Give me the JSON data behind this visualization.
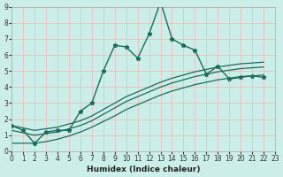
{
  "bg_color": "#cceee8",
  "grid_color": "#e8b8b8",
  "line_color": "#1a6b5a",
  "x_label": "Humidex (Indice chaleur)",
  "xlim": [
    0,
    23
  ],
  "ylim": [
    0,
    9
  ],
  "xticks": [
    0,
    1,
    2,
    3,
    4,
    5,
    6,
    7,
    8,
    9,
    10,
    11,
    12,
    13,
    14,
    15,
    16,
    17,
    18,
    19,
    20,
    21,
    22,
    23
  ],
  "yticks": [
    0,
    1,
    2,
    3,
    4,
    5,
    6,
    7,
    8,
    9
  ],
  "main_x": [
    0,
    1,
    2,
    3,
    4,
    5,
    6,
    7,
    8,
    9,
    10,
    11,
    12,
    13,
    14,
    15,
    16,
    17,
    18,
    19,
    20,
    21,
    22
  ],
  "main_y": [
    1.6,
    1.3,
    0.5,
    1.2,
    1.3,
    1.3,
    2.5,
    3.0,
    5.0,
    6.6,
    6.5,
    5.8,
    7.3,
    9.3,
    7.0,
    6.6,
    6.3,
    4.8,
    5.3,
    4.5,
    4.6,
    4.7,
    4.6
  ],
  "smooth1_x": [
    0,
    1,
    2,
    3,
    4,
    5,
    6,
    7,
    8,
    9,
    10,
    11,
    12,
    13,
    14,
    15,
    16,
    17,
    18,
    19,
    20,
    21,
    22
  ],
  "smooth1_y": [
    1.6,
    1.45,
    1.3,
    1.4,
    1.5,
    1.7,
    1.9,
    2.2,
    2.6,
    3.0,
    3.4,
    3.7,
    4.0,
    4.3,
    4.55,
    4.75,
    4.95,
    5.1,
    5.25,
    5.35,
    5.45,
    5.5,
    5.55
  ],
  "smooth2_x": [
    0,
    1,
    2,
    3,
    4,
    5,
    6,
    7,
    8,
    9,
    10,
    11,
    12,
    13,
    14,
    15,
    16,
    17,
    18,
    19,
    20,
    21,
    22
  ],
  "smooth2_y": [
    1.3,
    1.15,
    1.0,
    1.1,
    1.2,
    1.4,
    1.6,
    1.9,
    2.3,
    2.7,
    3.1,
    3.4,
    3.7,
    4.0,
    4.25,
    4.45,
    4.65,
    4.8,
    4.95,
    5.05,
    5.15,
    5.2,
    5.25
  ],
  "smooth3_x": [
    0,
    1,
    2,
    3,
    4,
    5,
    6,
    7,
    8,
    9,
    10,
    11,
    12,
    13,
    14,
    15,
    16,
    17,
    18,
    19,
    20,
    21,
    22
  ],
  "smooth3_y": [
    0.5,
    0.5,
    0.5,
    0.6,
    0.75,
    0.95,
    1.2,
    1.5,
    1.85,
    2.2,
    2.6,
    2.9,
    3.2,
    3.5,
    3.75,
    3.95,
    4.15,
    4.3,
    4.45,
    4.55,
    4.65,
    4.7,
    4.75
  ]
}
